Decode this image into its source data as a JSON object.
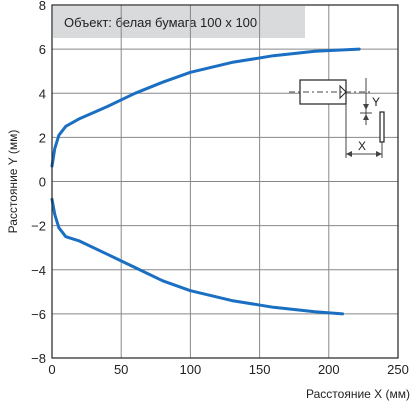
{
  "chart_data": {
    "type": "line",
    "title": "",
    "annotation": "Объект: белая бумага 100 х 100",
    "xlabel": "Расстояние X (мм)",
    "ylabel": "Расстояние Y (мм)",
    "xlim": [
      0,
      250
    ],
    "ylim": [
      -8,
      8
    ],
    "xticks": [
      "0",
      "50",
      "100",
      "150",
      "200",
      "250"
    ],
    "yticks": [
      "8",
      "6",
      "4",
      "2",
      "0",
      "−2",
      "−4",
      "−6",
      "−8"
    ],
    "grid": true,
    "inset": {
      "x_label": "X",
      "y_label": "Y"
    },
    "colors": {
      "line": "#1a6fc2",
      "grid": "#888888",
      "annotation_bg": "#d9dadb",
      "plot_bg": "#ffffff"
    },
    "series": [
      {
        "x": [
          0,
          2,
          5,
          10,
          20,
          40,
          60,
          80,
          100,
          130,
          160,
          190,
          222
        ],
        "y": [
          0.7,
          1.5,
          2.1,
          2.5,
          2.85,
          3.4,
          4.0,
          4.5,
          4.95,
          5.4,
          5.7,
          5.9,
          6.0
        ]
      },
      {
        "x": [
          0,
          2,
          5,
          10,
          20,
          40,
          60,
          80,
          100,
          130,
          160,
          190,
          210
        ],
        "y": [
          -0.8,
          -1.5,
          -2.1,
          -2.5,
          -2.7,
          -3.3,
          -3.9,
          -4.5,
          -4.95,
          -5.4,
          -5.7,
          -5.9,
          -6.0
        ]
      }
    ]
  }
}
